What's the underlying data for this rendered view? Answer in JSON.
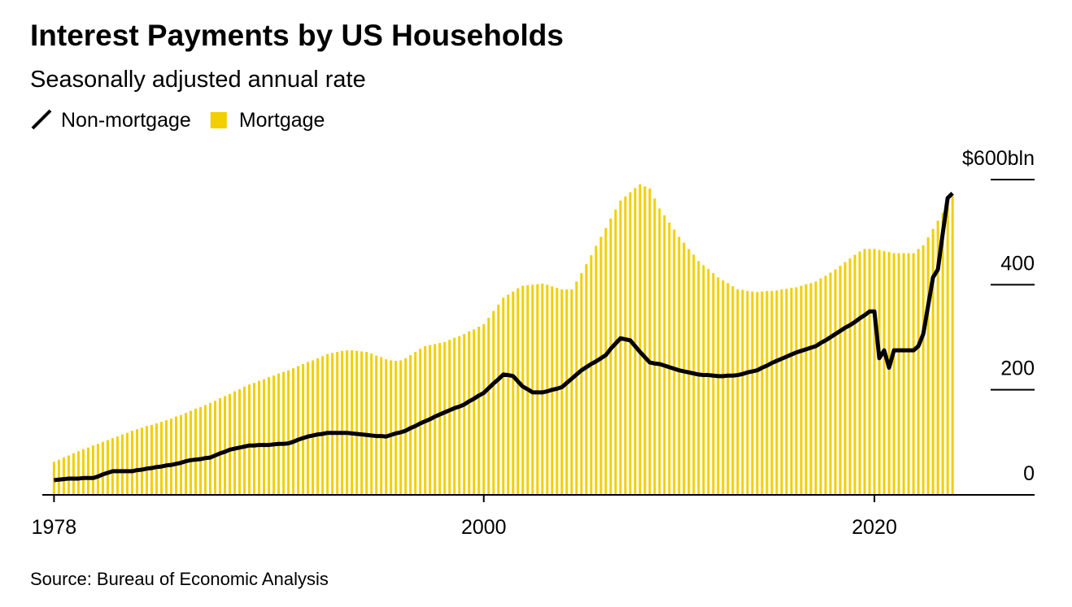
{
  "chart_data": {
    "type": "bar-line",
    "title": "Interest Payments by US Households",
    "subtitle": "Seasonally adjusted annual rate",
    "source": "Source: Bureau of Economic Analysis",
    "x": [
      1978,
      1978.25,
      1978.5,
      1978.75,
      1979,
      1979.25,
      1979.5,
      1979.75,
      1980,
      1980.25,
      1980.5,
      1980.75,
      1981,
      1981.25,
      1981.5,
      1981.75,
      1982,
      1982.25,
      1982.5,
      1982.75,
      1983,
      1983.25,
      1983.5,
      1983.75,
      1984,
      1984.25,
      1984.5,
      1984.75,
      1985,
      1985.25,
      1985.5,
      1985.75,
      1986,
      1986.25,
      1986.5,
      1986.75,
      1987,
      1987.25,
      1987.5,
      1987.75,
      1988,
      1988.25,
      1988.5,
      1988.75,
      1989,
      1989.25,
      1989.5,
      1989.75,
      1990,
      1990.25,
      1990.5,
      1990.75,
      1991,
      1991.25,
      1991.5,
      1991.75,
      1992,
      1992.25,
      1992.5,
      1992.75,
      1993,
      1993.25,
      1993.5,
      1993.75,
      1994,
      1994.25,
      1994.5,
      1994.75,
      1995,
      1995.25,
      1995.5,
      1995.75,
      1996,
      1996.25,
      1996.5,
      1996.75,
      1997,
      1997.25,
      1997.5,
      1997.75,
      1998,
      1998.25,
      1998.5,
      1998.75,
      1999,
      1999.25,
      1999.5,
      1999.75,
      2000,
      2000.25,
      2000.5,
      2000.75,
      2001,
      2001.25,
      2001.5,
      2001.75,
      2002,
      2002.25,
      2002.5,
      2002.75,
      2003,
      2003.25,
      2003.5,
      2003.75,
      2004,
      2004.25,
      2004.5,
      2004.75,
      2005,
      2005.25,
      2005.5,
      2005.75,
      2006,
      2006.25,
      2006.5,
      2006.75,
      2007,
      2007.25,
      2007.5,
      2007.75,
      2008,
      2008.25,
      2008.5,
      2008.75,
      2009,
      2009.25,
      2009.5,
      2009.75,
      2010,
      2010.25,
      2010.5,
      2010.75,
      2011,
      2011.25,
      2011.5,
      2011.75,
      2012,
      2012.25,
      2012.5,
      2012.75,
      2013,
      2013.25,
      2013.5,
      2013.75,
      2014,
      2014.25,
      2014.5,
      2014.75,
      2015,
      2015.25,
      2015.5,
      2015.75,
      2016,
      2016.25,
      2016.5,
      2016.75,
      2017,
      2017.25,
      2017.5,
      2017.75,
      2018,
      2018.25,
      2018.5,
      2018.75,
      2019,
      2019.25,
      2019.5,
      2019.75,
      2020,
      2020.25,
      2020.5,
      2020.75,
      2021,
      2021.25,
      2021.5,
      2021.75,
      2022,
      2022.25,
      2022.5,
      2022.75,
      2023,
      2023.25,
      2023.5,
      2023.75,
      2024
    ],
    "series": [
      {
        "name": "Non-mortgage",
        "kind": "line",
        "color": "#000000",
        "values": [
          28,
          29,
          30,
          31,
          31,
          31,
          32,
          32,
          32,
          35,
          39,
          42,
          45,
          45,
          45,
          45,
          45,
          47,
          48,
          50,
          51,
          53,
          54,
          56,
          57,
          59,
          61,
          64,
          66,
          67,
          68,
          70,
          71,
          75,
          79,
          82,
          86,
          88,
          90,
          92,
          94,
          94,
          95,
          95,
          95,
          96,
          97,
          97,
          98,
          101,
          105,
          108,
          111,
          113,
          115,
          116,
          118,
          118,
          118,
          118,
          118,
          117,
          116,
          115,
          114,
          113,
          112,
          112,
          111,
          114,
          117,
          119,
          122,
          127,
          131,
          136,
          140,
          144,
          149,
          153,
          157,
          161,
          165,
          168,
          172,
          178,
          183,
          189,
          194,
          203,
          212,
          220,
          229,
          228,
          226,
          216,
          206,
          201,
          195,
          195,
          195,
          197,
          200,
          202,
          205,
          213,
          221,
          229,
          237,
          243,
          249,
          254,
          260,
          266,
          278,
          288,
          298,
          296,
          294,
          283,
          272,
          262,
          252,
          250,
          249,
          246,
          243,
          240,
          237,
          235,
          233,
          231,
          229,
          228,
          228,
          227,
          226,
          226,
          227,
          227,
          228,
          230,
          233,
          235,
          237,
          242,
          246,
          251,
          255,
          259,
          263,
          267,
          271,
          274,
          277,
          280,
          283,
          289,
          294,
          300,
          306,
          312,
          318,
          323,
          329,
          336,
          342,
          349,
          349,
          260,
          275,
          242,
          275,
          275,
          275,
          275,
          275,
          283,
          306,
          360,
          414,
          429,
          498,
          565,
          574
        ]
      },
      {
        "name": "Mortgage",
        "kind": "bar",
        "color": "#f2cf00",
        "values": [
          63,
          67,
          71,
          75,
          79,
          83,
          87,
          90,
          94,
          97,
          101,
          104,
          108,
          111,
          115,
          118,
          122,
          125,
          128,
          131,
          133,
          136,
          139,
          142,
          145,
          149,
          152,
          156,
          160,
          164,
          167,
          171,
          175,
          179,
          184,
          188,
          192,
          197,
          201,
          206,
          210,
          213,
          217,
          220,
          224,
          227,
          231,
          234,
          237,
          241,
          245,
          249,
          253,
          256,
          260,
          264,
          268,
          270,
          272,
          274,
          275,
          275,
          274,
          273,
          272,
          269,
          265,
          262,
          258,
          256,
          255,
          256,
          260,
          266,
          272,
          278,
          283,
          285,
          287,
          289,
          291,
          295,
          299,
          302,
          306,
          311,
          315,
          320,
          325,
          337,
          350,
          362,
          375,
          381,
          387,
          393,
          398,
          399,
          400,
          401,
          402,
          400,
          397,
          394,
          391,
          391,
          391,
          406,
          422,
          439,
          456,
          474,
          491,
          508,
          526,
          543,
          560,
          568,
          576,
          584,
          591,
          587,
          583,
          564,
          545,
          532,
          518,
          505,
          491,
          480,
          468,
          457,
          445,
          437,
          430,
          422,
          414,
          408,
          403,
          397,
          391,
          390,
          388,
          387,
          386,
          387,
          388,
          388,
          389,
          391,
          392,
          394,
          395,
          398,
          401,
          403,
          406,
          412,
          417,
          423,
          429,
          436,
          443,
          450,
          457,
          463,
          468,
          468,
          468,
          466,
          464,
          462,
          460,
          460,
          460,
          460,
          460,
          468,
          475,
          490,
          506,
          522,
          537,
          552,
          568
        ]
      }
    ],
    "xlim": [
      1977.4,
      2028.2
    ],
    "xticks": [
      1978,
      2000,
      2020
    ],
    "ylim": [
      0,
      600
    ],
    "yticks": [
      0,
      200,
      400,
      {
        "value": 600,
        "label": "$600bln"
      }
    ],
    "legend": "top-left"
  }
}
